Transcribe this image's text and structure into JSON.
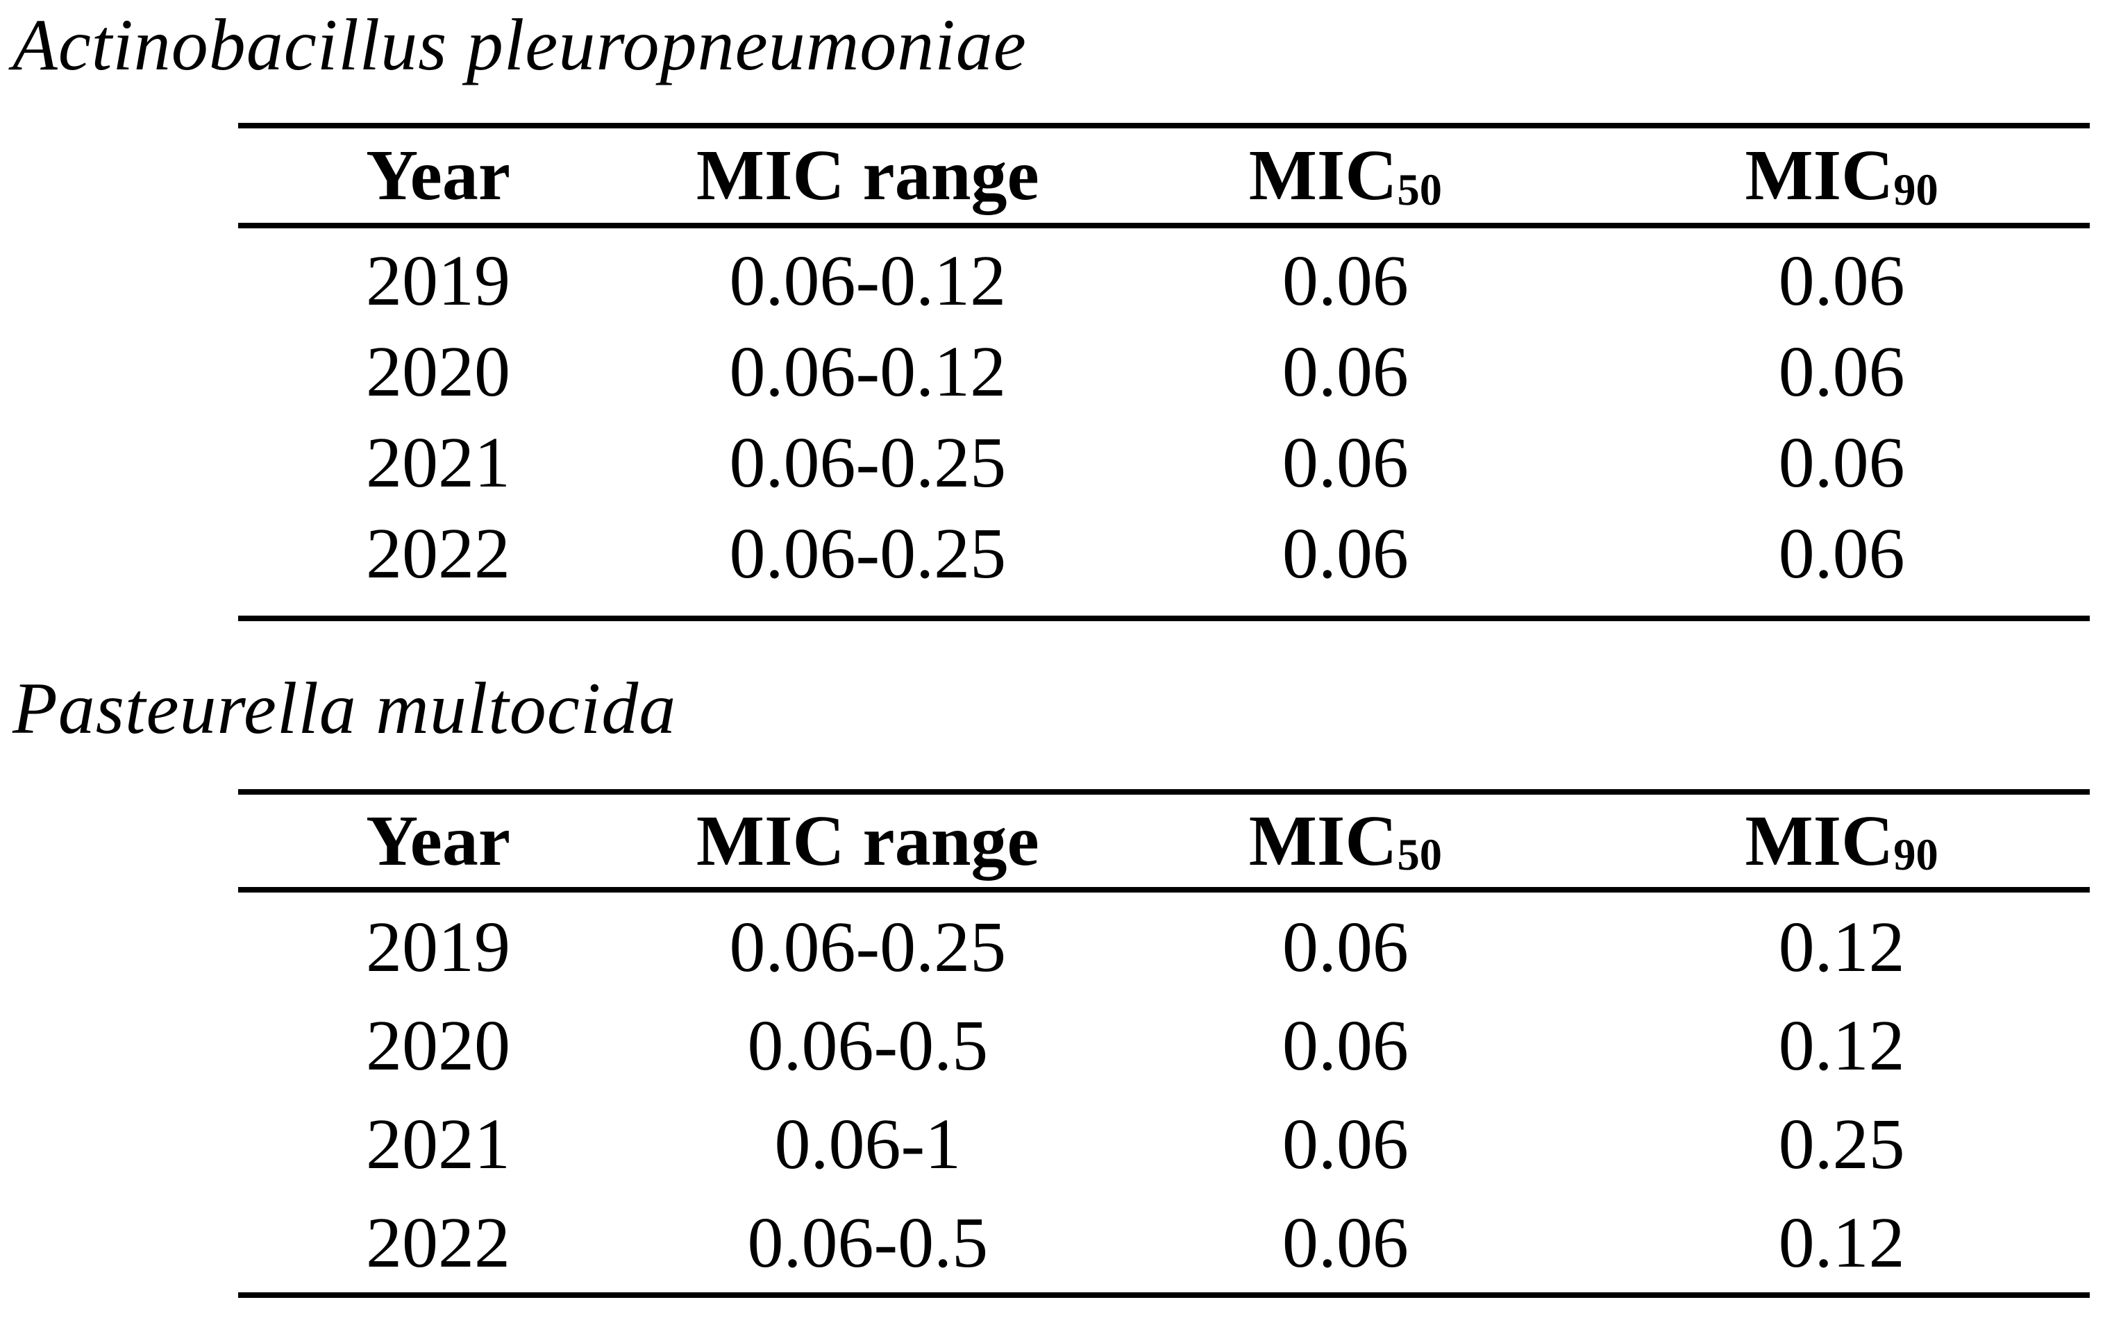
{
  "colors": {
    "background": "#ffffff",
    "text": "#000000",
    "rule": "#000000"
  },
  "sections": [
    {
      "title": "Actinobacillus pleuropneumoniae",
      "table": {
        "headers": {
          "year": "Year",
          "mic_range": "MIC range",
          "mic50_base": "MIC",
          "mic50_sub": "50",
          "mic90_base": "MIC",
          "mic90_sub": "90"
        },
        "rows": [
          {
            "year": "2019",
            "mic_range": "0.06-0.12",
            "mic50": "0.06",
            "mic90": "0.06"
          },
          {
            "year": "2020",
            "mic_range": "0.06-0.12",
            "mic50": "0.06",
            "mic90": "0.06"
          },
          {
            "year": "2021",
            "mic_range": "0.06-0.25",
            "mic50": "0.06",
            "mic90": "0.06"
          },
          {
            "year": "2022",
            "mic_range": "0.06-0.25",
            "mic50": "0.06",
            "mic90": "0.06"
          }
        ]
      }
    },
    {
      "title": "Pasteurella multocida",
      "table": {
        "headers": {
          "year": "Year",
          "mic_range": "MIC range",
          "mic50_base": "MIC",
          "mic50_sub": "50",
          "mic90_base": "MIC",
          "mic90_sub": "90"
        },
        "rows": [
          {
            "year": "2019",
            "mic_range": "0.06-0.25",
            "mic50": "0.06",
            "mic90": "0.12"
          },
          {
            "year": "2020",
            "mic_range": "0.06-0.5",
            "mic50": "0.06",
            "mic90": "0.12"
          },
          {
            "year": "2021",
            "mic_range": "0.06-1",
            "mic50": "0.06",
            "mic90": "0.25"
          },
          {
            "year": "2022",
            "mic_range": "0.06-0.5",
            "mic50": "0.06",
            "mic90": "0.12"
          }
        ]
      }
    }
  ],
  "chart_data": [
    {
      "type": "table",
      "title": "Actinobacillus pleuropneumoniae",
      "columns": [
        "Year",
        "MIC range",
        "MIC50",
        "MIC90"
      ],
      "rows": [
        [
          "2019",
          "0.06-0.12",
          "0.06",
          "0.06"
        ],
        [
          "2020",
          "0.06-0.12",
          "0.06",
          "0.06"
        ],
        [
          "2021",
          "0.06-0.25",
          "0.06",
          "0.06"
        ],
        [
          "2022",
          "0.06-0.25",
          "0.06",
          "0.06"
        ]
      ]
    },
    {
      "type": "table",
      "title": "Pasteurella multocida",
      "columns": [
        "Year",
        "MIC range",
        "MIC50",
        "MIC90"
      ],
      "rows": [
        [
          "2019",
          "0.06-0.25",
          "0.06",
          "0.12"
        ],
        [
          "2020",
          "0.06-0.5",
          "0.06",
          "0.12"
        ],
        [
          "2021",
          "0.06-1",
          "0.06",
          "0.25"
        ],
        [
          "2022",
          "0.06-0.5",
          "0.06",
          "0.12"
        ]
      ]
    }
  ]
}
